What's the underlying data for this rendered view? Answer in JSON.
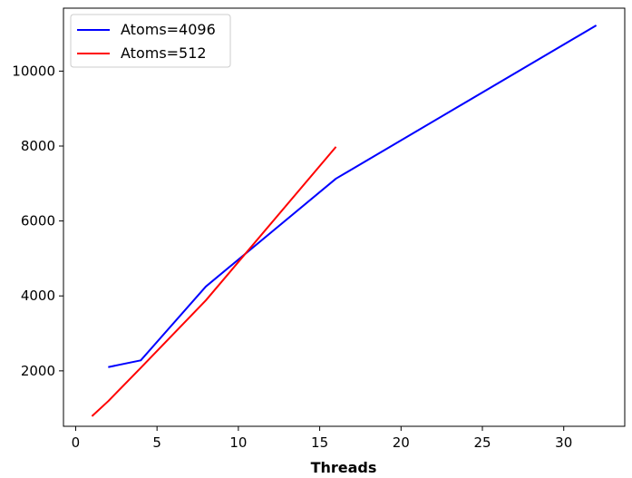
{
  "chart_data": {
    "type": "line",
    "title": "",
    "xlabel": "Threads",
    "ylabel": "",
    "xlim": [
      -0.75,
      33.75
    ],
    "ylim": [
      520,
      11680
    ],
    "xticks": [
      0,
      5,
      10,
      15,
      20,
      25,
      30
    ],
    "yticks": [
      2000,
      4000,
      6000,
      8000,
      10000
    ],
    "grid": false,
    "legend_position": "top-left",
    "series": [
      {
        "name": "Atoms=4096",
        "color": "#0000ff",
        "x": [
          2,
          4,
          8,
          16,
          32
        ],
        "y": [
          2100,
          2280,
          4250,
          7130,
          11220
        ]
      },
      {
        "name": "Atoms=512",
        "color": "#ff0000",
        "x": [
          1,
          2,
          4,
          8,
          16
        ],
        "y": [
          790,
          1190,
          2080,
          3880,
          7980
        ]
      }
    ]
  }
}
